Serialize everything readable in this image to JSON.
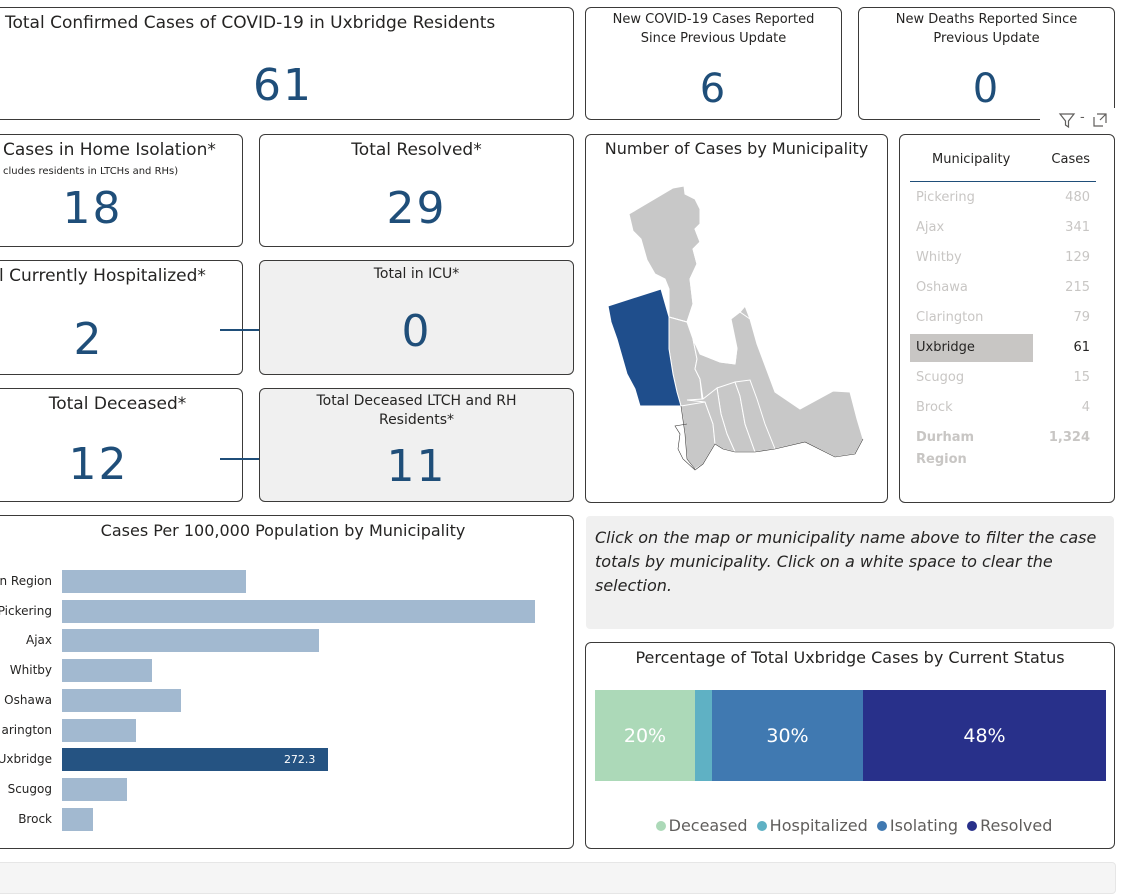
{
  "cards": {
    "total_confirmed": {
      "title": "Total Confirmed Cases of COVID-19 in Uxbridge Residents",
      "value": "61"
    },
    "new_cases": {
      "title_line1": "New COVID-19 Cases Reported",
      "title_line2": "Since Previous Update",
      "value": "6"
    },
    "new_deaths": {
      "title_line1": "New Deaths Reported Since",
      "title_line2": "Previous Update",
      "value": "0"
    },
    "home_isolation": {
      "title": "Cases in Home Isolation*",
      "subtitle": "cludes residents in LTCHs and RHs)",
      "value": "18"
    },
    "resolved": {
      "title": "Total Resolved*",
      "value": "29"
    },
    "hospitalized": {
      "title": "l Currently Hospitalized*",
      "value": "2"
    },
    "icu": {
      "title": "Total in ICU*",
      "value": "0"
    },
    "deceased": {
      "title": "Total Deceased*",
      "value": "12"
    },
    "deceased_ltch": {
      "title_line1": "Total Deceased LTCH and RH",
      "title_line2": "Residents*",
      "value": "11"
    }
  },
  "visual_header": {
    "filter_icon": "filter-icon",
    "focus_icon": "focus-mode-icon",
    "dash": "-"
  },
  "map": {
    "title": "Number of Cases by Municipality",
    "selected": "Uxbridge",
    "colors": {
      "selected": "#1f4e8c",
      "other": "#c8c8c8"
    }
  },
  "table": {
    "headers": {
      "municipality": "Municipality",
      "cases": "Cases"
    },
    "rows": [
      {
        "name": "Pickering",
        "cases": "480"
      },
      {
        "name": "Ajax",
        "cases": "341"
      },
      {
        "name": "Whitby",
        "cases": "129"
      },
      {
        "name": "Oshawa",
        "cases": "215"
      },
      {
        "name": "Clarington",
        "cases": "79"
      },
      {
        "name": "Uxbridge",
        "cases": "61"
      },
      {
        "name": "Scugog",
        "cases": "15"
      },
      {
        "name": "Brock",
        "cases": "4"
      }
    ],
    "total": {
      "name_line1": "Durham",
      "name_line2": "Region",
      "cases": "1,324"
    }
  },
  "info_text": "Click on the map or municipality name above to filter the case totals by municipality. Click on a white space to clear the selection.",
  "bar_chart": {
    "title": "Cases Per 100,000 Population by Municipality",
    "labels": [
      "n Region",
      "Pickering",
      "Ajax",
      "Whitby",
      "Oshawa",
      "arington",
      "Uxbridge",
      "Scugog",
      "Brock"
    ],
    "data_label": "272.3"
  },
  "stacked": {
    "title": "Percentage of Total Uxbridge Cases by Current Status",
    "labels": {
      "deceased": "20%",
      "isolating": "30%",
      "resolved": "48%"
    },
    "legend": {
      "deceased": "Deceased",
      "hospitalized": "Hospitalized",
      "isolating": "Isolating",
      "resolved": "Resolved"
    },
    "colors": {
      "deceased": "#acd9b8",
      "hospitalized": "#5fb1c4",
      "isolating": "#4079b1",
      "resolved": "#28308a"
    }
  },
  "chart_data": [
    {
      "type": "bar",
      "title": "Cases Per 100,000 Population by Municipality",
      "categories": [
        "Durham Region",
        "Pickering",
        "Ajax",
        "Whitby",
        "Oshawa",
        "Clarington",
        "Uxbridge",
        "Scugog",
        "Brock"
      ],
      "values": [
        188.5,
        484.3,
        263.2,
        92.1,
        122.0,
        75.9,
        272.3,
        66.8,
        32.2
      ],
      "selected": "Uxbridge",
      "colors": {
        "default": "#a2b9d0",
        "selected": "#255382"
      }
    },
    {
      "type": "bar",
      "title": "Percentage of Total Uxbridge Cases by Current Status",
      "stacked": true,
      "series": [
        {
          "name": "Deceased",
          "values": [
            20
          ]
        },
        {
          "name": "Hospitalized",
          "values": [
            3
          ]
        },
        {
          "name": "Isolating",
          "values": [
            30
          ]
        },
        {
          "name": "Resolved",
          "values": [
            48
          ]
        }
      ]
    }
  ]
}
